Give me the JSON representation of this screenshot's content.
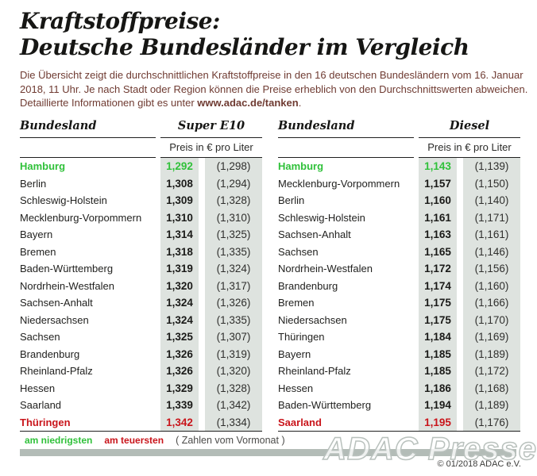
{
  "header": {
    "title_line1": "Kraftstoffpreise:",
    "title_line2": "Deutsche Bundesländer im Vergleich",
    "intro_text": "Die Übersicht zeigt die durchschnittlichen Kraftstoffpreise in den 16 deutschen Bundesländern vom 16. Januar 2018, 11 Uhr. Je nach Stadt oder Region können die Preise erheblich von den Durchschnittswerten abweichen. Detaillierte Informationen gibt es unter ",
    "intro_link": "www.adac.de/tanken",
    "intro_suffix": "."
  },
  "chart_data": [
    {
      "type": "table",
      "state_header": "Bundesland",
      "fuel_label": "Super E10",
      "price_header": "Preis in € pro Liter",
      "note": "values in € per liter, parentheses = previous month",
      "rows": [
        {
          "state": "Hamburg",
          "price": "1,292",
          "prev": "(1,298)",
          "highlight": "lowest"
        },
        {
          "state": "Berlin",
          "price": "1,308",
          "prev": "(1,294)"
        },
        {
          "state": "Schleswig-Holstein",
          "price": "1,309",
          "prev": "(1,328)"
        },
        {
          "state": "Mecklenburg-Vorpommern",
          "price": "1,310",
          "prev": "(1,310)"
        },
        {
          "state": "Bayern",
          "price": "1,314",
          "prev": "(1,325)"
        },
        {
          "state": "Bremen",
          "price": "1,318",
          "prev": "(1,335)"
        },
        {
          "state": "Baden-Württemberg",
          "price": "1,319",
          "prev": "(1,324)"
        },
        {
          "state": "Nordrhein-Westfalen",
          "price": "1,320",
          "prev": "(1,317)"
        },
        {
          "state": "Sachsen-Anhalt",
          "price": "1,324",
          "prev": "(1,326)"
        },
        {
          "state": "Niedersachsen",
          "price": "1,324",
          "prev": "(1,335)"
        },
        {
          "state": "Sachsen",
          "price": "1,325",
          "prev": "(1,307)"
        },
        {
          "state": "Brandenburg",
          "price": "1,326",
          "prev": "(1,319)"
        },
        {
          "state": "Rheinland-Pfalz",
          "price": "1,326",
          "prev": "(1,320)"
        },
        {
          "state": "Hessen",
          "price": "1,329",
          "prev": "(1,328)"
        },
        {
          "state": "Saarland",
          "price": "1,339",
          "prev": "(1,342)"
        },
        {
          "state": "Thüringen",
          "price": "1,342",
          "prev": "(1,334)",
          "highlight": "highest"
        }
      ]
    },
    {
      "type": "table",
      "state_header": "Bundesland",
      "fuel_label": "Diesel",
      "price_header": "Preis in € pro Liter",
      "note": "values in € per liter, parentheses = previous month",
      "rows": [
        {
          "state": "Hamburg",
          "price": "1,143",
          "prev": "(1,139)",
          "highlight": "lowest"
        },
        {
          "state": "Mecklenburg-Vorpommern",
          "price": "1,157",
          "prev": "(1,150)"
        },
        {
          "state": "Berlin",
          "price": "1,160",
          "prev": "(1,140)"
        },
        {
          "state": "Schleswig-Holstein",
          "price": "1,161",
          "prev": "(1,171)"
        },
        {
          "state": "Sachsen-Anhalt",
          "price": "1,163",
          "prev": "(1,161)"
        },
        {
          "state": "Sachsen",
          "price": "1,165",
          "prev": "(1,146)"
        },
        {
          "state": "Nordrhein-Westfalen",
          "price": "1,172",
          "prev": "(1,156)"
        },
        {
          "state": "Brandenburg",
          "price": "1,174",
          "prev": "(1,160)"
        },
        {
          "state": "Bremen",
          "price": "1,175",
          "prev": "(1,166)"
        },
        {
          "state": "Niedersachsen",
          "price": "1,175",
          "prev": "(1,170)"
        },
        {
          "state": "Thüringen",
          "price": "1,184",
          "prev": "(1,169)"
        },
        {
          "state": "Bayern",
          "price": "1,185",
          "prev": "(1,189)"
        },
        {
          "state": "Rheinland-Pfalz",
          "price": "1,185",
          "prev": "(1,172)"
        },
        {
          "state": "Hessen",
          "price": "1,186",
          "prev": "(1,168)"
        },
        {
          "state": "Baden-Württemberg",
          "price": "1,194",
          "prev": "(1,189)"
        },
        {
          "state": "Saarland",
          "price": "1,195",
          "prev": "(1,176)",
          "highlight": "highest"
        }
      ]
    }
  ],
  "legend": {
    "lowest_label": "am niedrigsten",
    "highest_label": "am teuersten",
    "note": "( Zahlen vom Vormonat )"
  },
  "footer": {
    "watermark": "ADAC Presse",
    "copyright": "© 01/2018 ADAC e.V."
  },
  "colors": {
    "lowest": "#30c13a",
    "highest": "#c9151b",
    "column_band": "#dee3df",
    "footer_bar": "#b3bcb7",
    "intro_text": "#6f3b32"
  }
}
